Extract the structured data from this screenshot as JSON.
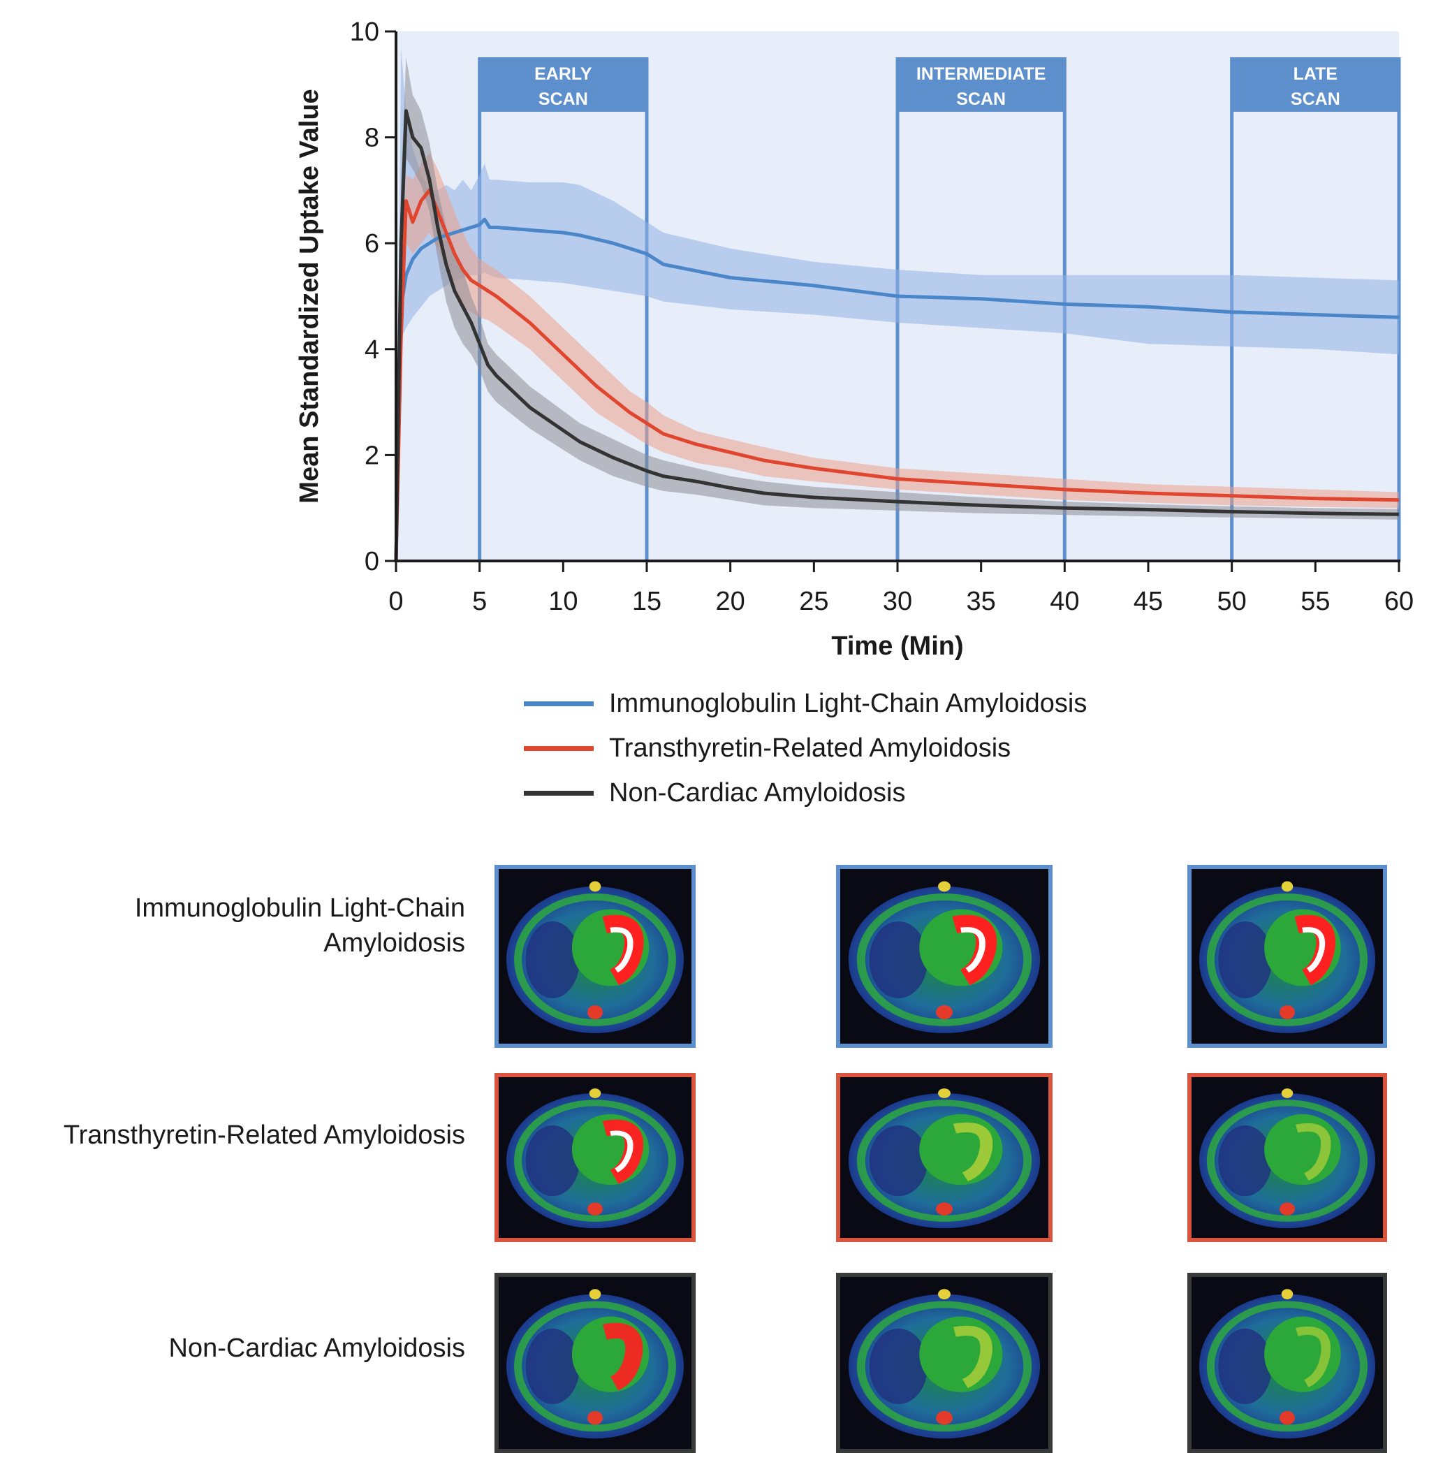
{
  "chart_data": {
    "type": "line",
    "xlabel": "Time (Min)",
    "ylabel": "Mean Standardized Uptake Value",
    "xlim": [
      0,
      60
    ],
    "ylim": [
      0,
      10
    ],
    "x_ticks": [
      "0",
      "5",
      "10",
      "15",
      "20",
      "25",
      "30",
      "35",
      "40",
      "45",
      "50",
      "55",
      "60"
    ],
    "y_ticks": [
      "0",
      "2",
      "4",
      "6",
      "8",
      "10"
    ],
    "scan_windows": [
      {
        "label_line1": "EARLY",
        "label_line2": "SCAN",
        "start": 5,
        "end": 15
      },
      {
        "label_line1": "INTERMEDIATE",
        "label_line2": "SCAN",
        "start": 30,
        "end": 40
      },
      {
        "label_line1": "LATE",
        "label_line2": "SCAN",
        "start": 50,
        "end": 60
      }
    ],
    "series": [
      {
        "name": "Immunoglobulin Light-Chain Amyloidosis",
        "color": "#4a86c8",
        "band_color": "#8fb3e6",
        "x": [
          0,
          0.3,
          0.6,
          1,
          1.5,
          2,
          2.5,
          3,
          3.5,
          4,
          4.5,
          5,
          5.3,
          5.6,
          6,
          8,
          10,
          11,
          13,
          15,
          16,
          20,
          25,
          30,
          35,
          40,
          45,
          50,
          55,
          60
        ],
        "y": [
          0,
          4.8,
          5.4,
          5.7,
          5.9,
          6.0,
          6.1,
          6.15,
          6.2,
          6.25,
          6.3,
          6.35,
          6.45,
          6.3,
          6.3,
          6.25,
          6.2,
          6.15,
          6.0,
          5.8,
          5.6,
          5.35,
          5.2,
          5.0,
          4.95,
          4.85,
          4.8,
          4.7,
          4.65,
          4.6
        ],
        "upper": [
          0,
          9.7,
          8.5,
          7.8,
          7.3,
          7.0,
          7.0,
          7.1,
          7.0,
          7.2,
          7.0,
          7.3,
          7.5,
          7.2,
          7.2,
          7.15,
          7.15,
          7.1,
          6.8,
          6.4,
          6.2,
          5.9,
          5.65,
          5.5,
          5.4,
          5.4,
          5.4,
          5.4,
          5.35,
          5.3
        ],
        "lower": [
          0,
          4.2,
          4.4,
          4.6,
          4.8,
          5.0,
          5.1,
          5.2,
          5.3,
          5.35,
          5.4,
          5.4,
          5.45,
          5.4,
          5.35,
          5.3,
          5.25,
          5.2,
          5.1,
          5.0,
          4.9,
          4.75,
          4.65,
          4.5,
          4.4,
          4.3,
          4.1,
          4.05,
          4.0,
          3.9
        ]
      },
      {
        "name": "Transthyretin-Related Amyloidosis",
        "color": "#e0452f",
        "band_color": "#eba08b",
        "x": [
          0,
          0.3,
          0.6,
          1,
          1.5,
          2,
          2.5,
          3,
          3.5,
          4,
          4.5,
          5,
          5.5,
          6,
          8,
          10,
          12,
          14,
          15,
          16,
          18,
          20,
          22,
          25,
          30,
          35,
          40,
          45,
          50,
          55,
          60
        ],
        "y": [
          0,
          4.2,
          6.8,
          6.4,
          6.8,
          7.0,
          6.6,
          6.2,
          5.8,
          5.5,
          5.3,
          5.2,
          5.1,
          5.0,
          4.5,
          3.9,
          3.3,
          2.8,
          2.6,
          2.4,
          2.2,
          2.05,
          1.9,
          1.75,
          1.55,
          1.45,
          1.35,
          1.28,
          1.23,
          1.18,
          1.15
        ],
        "upper": [
          0,
          5.0,
          7.3,
          7.2,
          7.5,
          7.7,
          7.4,
          7.0,
          6.6,
          6.2,
          5.9,
          5.7,
          5.6,
          5.5,
          5.0,
          4.4,
          3.8,
          3.2,
          3.0,
          2.75,
          2.45,
          2.3,
          2.15,
          1.95,
          1.75,
          1.65,
          1.55,
          1.45,
          1.4,
          1.35,
          1.3
        ],
        "lower": [
          0,
          3.4,
          6.0,
          5.8,
          6.0,
          6.2,
          5.9,
          5.5,
          5.1,
          4.8,
          4.7,
          4.6,
          4.55,
          4.45,
          4.0,
          3.4,
          2.8,
          2.4,
          2.2,
          2.05,
          1.85,
          1.75,
          1.6,
          1.5,
          1.35,
          1.25,
          1.15,
          1.1,
          1.05,
          1.02,
          1.0
        ]
      },
      {
        "name": "Non-Cardiac Amyloidosis",
        "color": "#333333",
        "band_color": "#8c8c95",
        "x": [
          0,
          0.3,
          0.6,
          1,
          1.5,
          2,
          2.5,
          3,
          3.5,
          4,
          4.5,
          5,
          5.5,
          6,
          8,
          11,
          13,
          15,
          16,
          18,
          20,
          22,
          25,
          30,
          35,
          40,
          45,
          50,
          55,
          60
        ],
        "y": [
          0,
          6.0,
          8.5,
          8.0,
          7.8,
          7.2,
          6.3,
          5.6,
          5.1,
          4.8,
          4.5,
          4.1,
          3.7,
          3.5,
          2.9,
          2.25,
          1.95,
          1.7,
          1.6,
          1.5,
          1.38,
          1.28,
          1.2,
          1.12,
          1.05,
          1.0,
          0.97,
          0.93,
          0.9,
          0.88
        ],
        "upper": [
          0,
          7.2,
          9.5,
          8.8,
          8.5,
          7.9,
          7.0,
          6.3,
          5.8,
          5.5,
          5.0,
          4.6,
          4.1,
          3.9,
          3.3,
          2.6,
          2.3,
          2.0,
          1.9,
          1.75,
          1.6,
          1.5,
          1.4,
          1.3,
          1.2,
          1.12,
          1.07,
          1.03,
          1.0,
          0.98
        ],
        "lower": [
          0,
          4.8,
          7.6,
          7.4,
          7.1,
          6.6,
          5.7,
          4.9,
          4.4,
          4.1,
          3.9,
          3.6,
          3.2,
          3.0,
          2.5,
          1.9,
          1.6,
          1.4,
          1.32,
          1.25,
          1.15,
          1.05,
          1.0,
          0.95,
          0.9,
          0.87,
          0.84,
          0.82,
          0.8,
          0.78
        ]
      }
    ]
  },
  "rows": [
    {
      "label_line1": "Immunoglobulin Light-Chain",
      "label_line2": "Amyloidosis",
      "frame_color": "#5d8fcc"
    },
    {
      "label_line1": "Transthyretin-Related Amyloidosis",
      "label_line2": "",
      "frame_color": "#d9553f"
    },
    {
      "label_line1": "Non-Cardiac Amyloidosis",
      "label_line2": "",
      "frame_color": "#3a3a3a"
    }
  ]
}
